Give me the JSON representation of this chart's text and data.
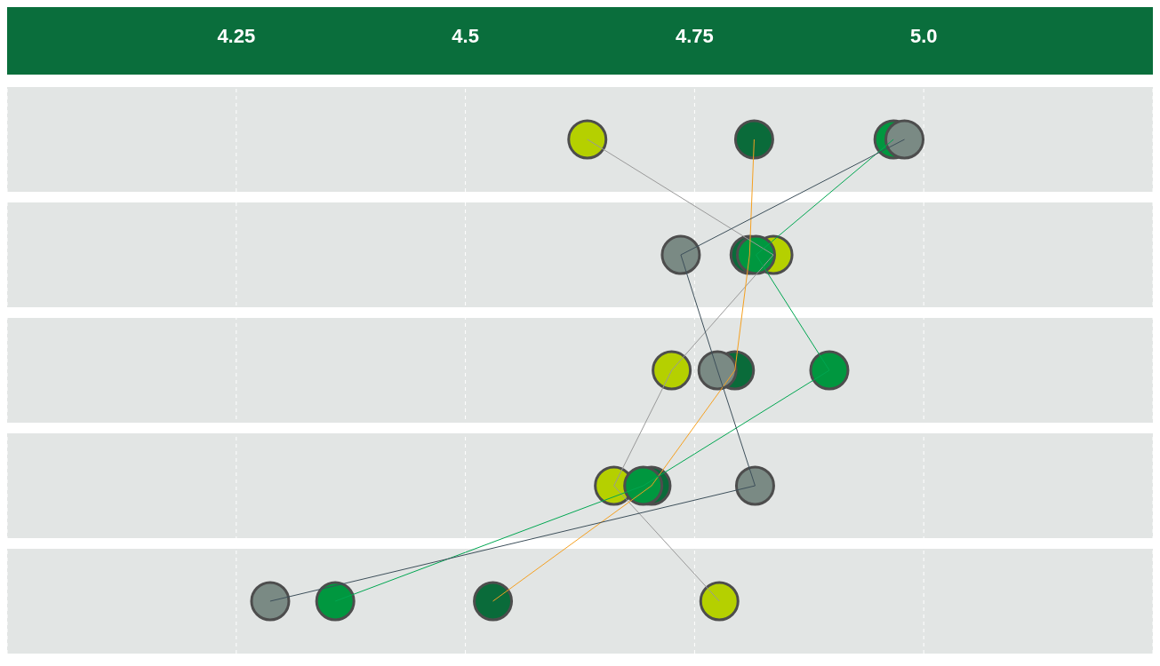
{
  "chart_data": {
    "type": "line",
    "categories": [
      null,
      null,
      null,
      null,
      null
    ],
    "series": [
      {
        "color": "#999999",
        "colors": [
          "#b5d000",
          "#b5d000",
          "#b5d000",
          "#b5d000",
          "#b5d000"
        ],
        "values": [
          4.633,
          4.836,
          4.725,
          4.662,
          4.777
        ]
      },
      {
        "color": "#f5a020",
        "colors": [
          "#0a6b3a",
          "#0a6b3a",
          "#0a6b3a",
          "#0a6b3a",
          "#0a6b3a"
        ],
        "values": [
          4.815,
          4.81,
          4.794,
          4.703,
          4.53
        ]
      },
      {
        "color": "#00a651",
        "colors": [
          "#00973f",
          "#00973f",
          "#00973f",
          "#00973f",
          "#00973f"
        ],
        "values": [
          4.967,
          4.817,
          4.897,
          4.694,
          4.358
        ]
      },
      {
        "color": "#3d4f5a",
        "colors": [
          "#7a8a84",
          "#7a8a84",
          "#7a8a84",
          "#7a8a84",
          "#7a8a84"
        ],
        "values": [
          4.979,
          4.735,
          4.775,
          4.816,
          4.287
        ]
      }
    ],
    "orientation": "horizontal",
    "xlim": [
      4.0,
      5.25
    ],
    "xticks": [
      4.25,
      4.5,
      4.75,
      {
        "value": 5.0,
        "label": "5.0"
      }
    ],
    "grid": "x",
    "marker": "circle",
    "legend": false
  }
}
